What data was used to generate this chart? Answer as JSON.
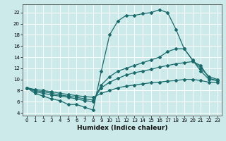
{
  "xlabel": "Humidex (Indice chaleur)",
  "ylabel": "",
  "bg_color": "#cceaea",
  "line_color": "#1a6b6b",
  "grid_color": "#ffffff",
  "xlim": [
    -0.5,
    23.5
  ],
  "ylim": [
    3.5,
    23.5
  ],
  "xticks": [
    0,
    1,
    2,
    3,
    4,
    5,
    6,
    7,
    8,
    9,
    10,
    11,
    12,
    13,
    14,
    15,
    16,
    17,
    18,
    19,
    20,
    21,
    22,
    23
  ],
  "yticks": [
    4,
    6,
    8,
    10,
    12,
    14,
    16,
    18,
    20,
    22
  ],
  "line1_x": [
    0,
    1,
    2,
    3,
    4,
    5,
    6,
    7,
    8,
    9,
    10,
    11,
    12,
    13,
    14,
    15,
    16,
    17,
    18,
    19,
    20,
    21,
    22,
    23
  ],
  "line1_y": [
    8.5,
    7.5,
    7.0,
    6.5,
    6.2,
    5.5,
    5.5,
    5.0,
    4.5,
    11.5,
    18.0,
    20.5,
    21.5,
    21.5,
    21.8,
    22.0,
    22.5,
    22.0,
    19.0,
    15.5,
    13.5,
    12.0,
    10.5,
    10.0
  ],
  "line2_x": [
    0,
    1,
    2,
    3,
    4,
    5,
    6,
    7,
    8,
    9,
    10,
    11,
    12,
    13,
    14,
    15,
    16,
    17,
    18,
    19,
    20,
    21,
    22,
    23
  ],
  "line2_y": [
    8.5,
    7.8,
    7.5,
    7.2,
    7.0,
    6.8,
    6.5,
    6.2,
    6.0,
    9.0,
    10.5,
    11.5,
    12.0,
    12.5,
    13.0,
    13.5,
    14.0,
    15.0,
    15.5,
    15.5,
    13.5,
    11.5,
    10.0,
    9.8
  ],
  "line3_x": [
    0,
    1,
    2,
    3,
    4,
    5,
    6,
    7,
    8,
    9,
    10,
    11,
    12,
    13,
    14,
    15,
    16,
    17,
    18,
    19,
    20,
    21,
    22,
    23
  ],
  "line3_y": [
    8.5,
    8.0,
    7.8,
    7.5,
    7.2,
    7.0,
    6.8,
    6.5,
    6.3,
    8.5,
    9.5,
    10.2,
    10.8,
    11.2,
    11.5,
    11.8,
    12.2,
    12.5,
    12.8,
    13.0,
    13.2,
    12.5,
    10.2,
    9.8
  ],
  "line4_x": [
    0,
    1,
    2,
    3,
    4,
    5,
    6,
    7,
    8,
    9,
    10,
    11,
    12,
    13,
    14,
    15,
    16,
    17,
    18,
    19,
    20,
    21,
    22,
    23
  ],
  "line4_y": [
    8.5,
    8.2,
    8.0,
    7.8,
    7.5,
    7.3,
    7.1,
    6.9,
    6.8,
    7.5,
    8.0,
    8.5,
    8.8,
    9.0,
    9.2,
    9.4,
    9.5,
    9.7,
    9.8,
    10.0,
    10.0,
    9.8,
    9.5,
    9.5
  ]
}
